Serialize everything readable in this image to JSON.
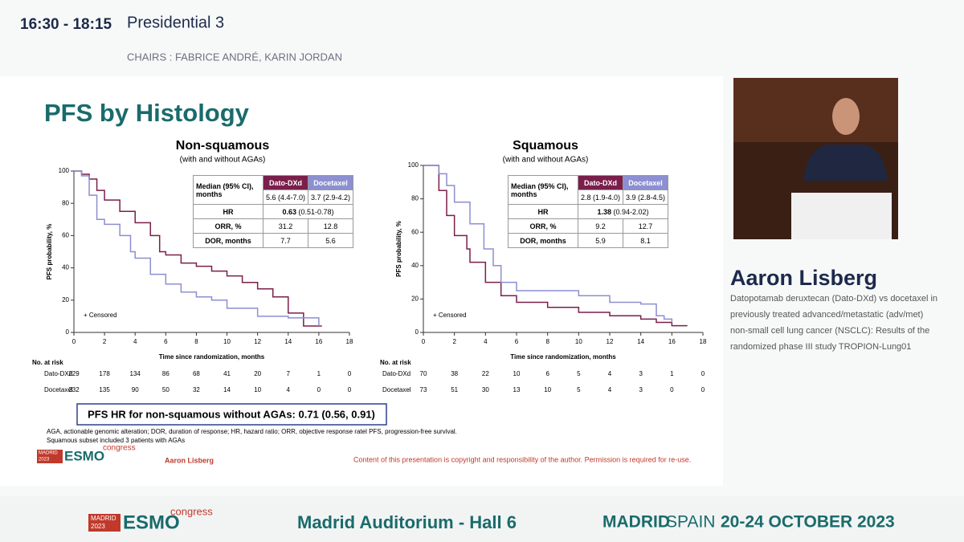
{
  "header": {
    "time": "16:30 - 18:15",
    "session": "Presidential 3",
    "chairs": "CHAIRS : FABRICE ANDRÉ, KARIN JORDAN"
  },
  "slide": {
    "title": "PFS by Histology",
    "hr_box": "PFS HR for non-squamous without AGAs: 0.71 (0.56, 0.91)",
    "footnote": [
      "AGA, actionable genomic alteration; DOR, duration of response; HR, hazard ratio; ORR, objective response ratel PFS, progression-free survival.",
      "Squamous subset included 3 patients with AGAs"
    ],
    "author": "Aaron Lisberg",
    "copyright": "Content of this presentation is copyright and responsibility of the author. Permission is required for re-use."
  },
  "logo": {
    "city": "MADRID",
    "year": "2023",
    "brand": "ESMO",
    "suffix": "congress"
  },
  "speaker": {
    "name": "Aaron Lisberg",
    "description": [
      "Datopotamab deruxtecan (Dato-DXd) vs docetaxel in",
      "previously treated advanced/metastatic (adv/met)",
      "non-small cell lung cancer (NSCLC): Results of the",
      "randomized phase III study TROPION-Lung01"
    ]
  },
  "footer": {
    "venue": "Madrid Auditorium - Hall 6",
    "city": "MADRID",
    "country": "SPAIN",
    "dates": "20-24 OCTOBER 2023"
  },
  "chart_data": [
    {
      "type": "line",
      "step": true,
      "title": "Non-squamous",
      "subtitle": "(with and without AGAs)",
      "x_label": "Time since randomization, months",
      "y_label": "PFS probability, %",
      "note": "+ Censored",
      "xlim": [
        0,
        18
      ],
      "xticks": [
        0,
        2,
        4,
        6,
        8,
        10,
        12,
        14,
        16,
        18
      ],
      "ylim": [
        0,
        100
      ],
      "yticks": [
        0,
        20,
        40,
        60,
        80,
        100
      ],
      "series": [
        {
          "name": "Dato-DXd",
          "color": "#7a1f4b",
          "x": [
            0,
            0.5,
            1,
            1.5,
            2,
            3,
            4,
            5,
            5.6,
            6,
            7,
            8,
            9,
            10,
            11,
            12,
            13,
            14,
            15,
            16.2
          ],
          "values": [
            100,
            98,
            95,
            88,
            82,
            75,
            68,
            60,
            50,
            48,
            43,
            41,
            38,
            35,
            31,
            27,
            22,
            12,
            4,
            4
          ]
        },
        {
          "name": "Docetaxel",
          "color": "#8c8fd0",
          "x": [
            0,
            0.5,
            1,
            1.5,
            2,
            3,
            3.7,
            4,
            5,
            6,
            7,
            8,
            9,
            10,
            12,
            14,
            15,
            16
          ],
          "values": [
            100,
            97,
            85,
            70,
            67,
            60,
            50,
            46,
            36,
            30,
            25,
            22,
            20,
            15,
            10,
            9,
            9,
            4
          ]
        }
      ],
      "stats": {
        "median_label": "Median (95% CI), months",
        "median": [
          "5.6 (4.4-7.0)",
          "3.7 (2.9-4.2)"
        ],
        "hr_label": "HR",
        "hr": 0.63,
        "hr_ci": "(0.51-0.78)",
        "rows": [
          {
            "label": "ORR, %",
            "values": [
              31.2,
              12.8
            ]
          },
          {
            "label": "DOR, months",
            "values": [
              7.7,
              5.6
            ]
          }
        ]
      },
      "at_risk": {
        "label": "No. at risk",
        "counts": [
          [
            229,
            178,
            134,
            86,
            68,
            41,
            20,
            7,
            1,
            0
          ],
          [
            232,
            135,
            90,
            50,
            32,
            14,
            10,
            4,
            0,
            0
          ]
        ]
      }
    },
    {
      "type": "line",
      "step": true,
      "title": "Squamous",
      "subtitle": "(with and without AGAs)",
      "x_label": "Time since randomization, months",
      "y_label": "PFS probability, %",
      "note": "+ Censored",
      "xlim": [
        0,
        18
      ],
      "xticks": [
        0,
        2,
        4,
        6,
        8,
        10,
        12,
        14,
        16,
        18
      ],
      "ylim": [
        0,
        100
      ],
      "yticks": [
        0,
        20,
        40,
        60,
        80,
        100
      ],
      "series": [
        {
          "name": "Dato-DXd",
          "color": "#7a1f4b",
          "x": [
            0,
            0.8,
            1,
            1.5,
            2,
            2.8,
            3,
            4,
            5,
            6,
            8,
            10,
            12,
            14,
            15,
            16,
            17
          ],
          "values": [
            100,
            100,
            85,
            70,
            58,
            50,
            42,
            30,
            22,
            18,
            15,
            12,
            10,
            8,
            6,
            4,
            4
          ]
        },
        {
          "name": "Docetaxel",
          "color": "#8c8fd0",
          "x": [
            0,
            1,
            1.5,
            2,
            3,
            3.9,
            4.5,
            5,
            6,
            8,
            10,
            12,
            14,
            15,
            15.5,
            16
          ],
          "values": [
            100,
            95,
            88,
            78,
            65,
            50,
            40,
            30,
            25,
            25,
            22,
            18,
            17,
            10,
            8,
            6
          ]
        }
      ],
      "stats": {
        "median_label": "Median (95% CI), months",
        "median": [
          "2.8 (1.9-4.0)",
          "3.9 (2.8-4.5)"
        ],
        "hr_label": "HR",
        "hr": 1.38,
        "hr_ci": "(0.94-2.02)",
        "rows": [
          {
            "label": "ORR, %",
            "values": [
              9.2,
              12.7
            ]
          },
          {
            "label": "DOR, months",
            "values": [
              5.9,
              8.1
            ]
          }
        ]
      },
      "at_risk": {
        "label": "No. at risk",
        "counts": [
          [
            70,
            38,
            22,
            10,
            6,
            5,
            4,
            3,
            1,
            0
          ],
          [
            73,
            51,
            30,
            13,
            10,
            5,
            4,
            3,
            0,
            0
          ]
        ]
      }
    }
  ]
}
